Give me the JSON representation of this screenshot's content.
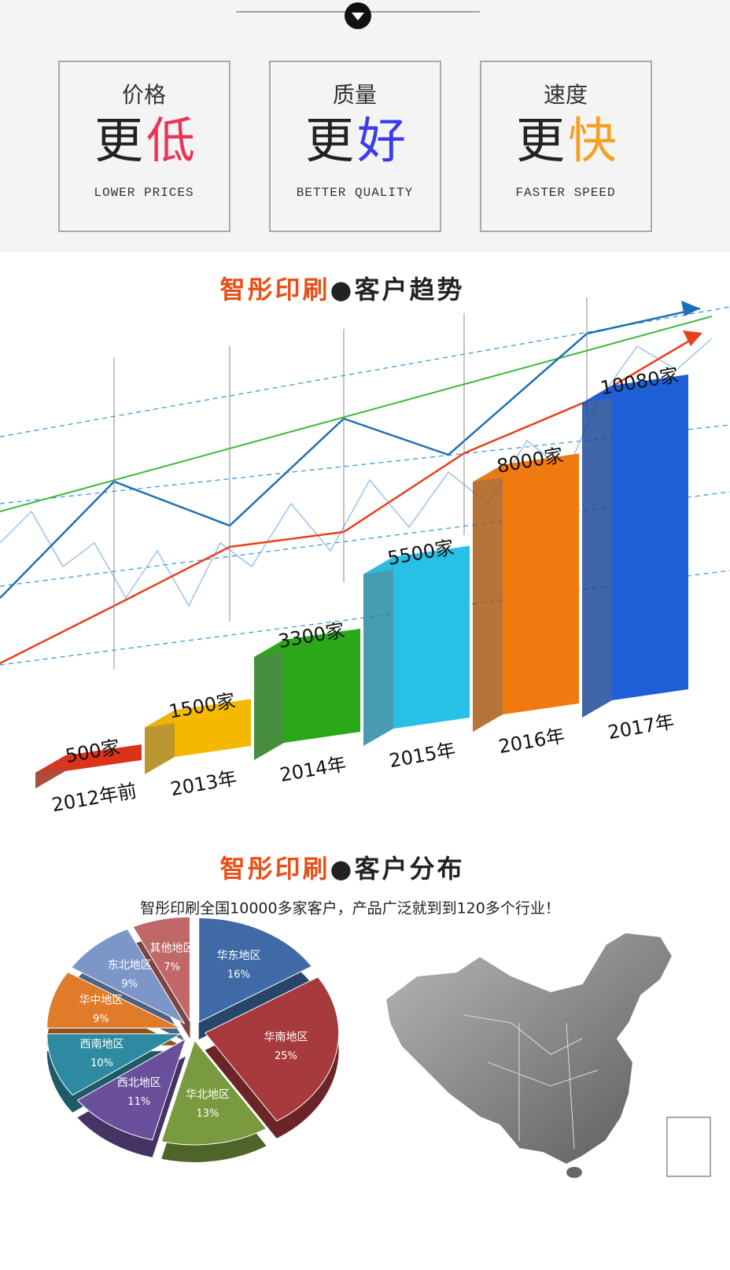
{
  "features": [
    {
      "label": "价格",
      "main": "更",
      "accent": "低",
      "english": "LOWER PRICES",
      "color": "#e8365a"
    },
    {
      "label": "质量",
      "main": "更",
      "accent": "好",
      "english": "BETTER QUALITY",
      "color": "#3b3bf0"
    },
    {
      "label": "速度",
      "main": "更",
      "accent": "快",
      "english": "FASTER SPEED",
      "color": "#f5a020"
    }
  ],
  "chart_data": [
    {
      "type": "bar3d",
      "title_brand": "智彤印刷",
      "title": "●客户趋势",
      "categories": [
        "2012年前",
        "2013年",
        "2014年",
        "2015年",
        "2016年",
        "2017年"
      ],
      "values": [
        500,
        1500,
        3300,
        5500,
        8000,
        10080
      ],
      "value_labels": [
        "500家",
        "1500家",
        "3300家",
        "5500家",
        "8000家",
        "10080家"
      ],
      "colors": [
        "#d9341a",
        "#f5b800",
        "#2aa81a",
        "#29c0e8",
        "#f07a10",
        "#1e5fd8"
      ]
    },
    {
      "type": "pie3d",
      "title_brand": "智彤印刷",
      "title": "●客户分布",
      "subtitle": "智彤印刷全国10000多家客户，产品广泛就到到120多个行业！",
      "categories": [
        "华东地区",
        "华南地区",
        "华北地区",
        "西北地区",
        "西南地区",
        "华中地区",
        "东北地区",
        "其他地区"
      ],
      "values": [
        16,
        25,
        13,
        11,
        10,
        9,
        9,
        7
      ],
      "value_labels": [
        "16%",
        "25%",
        "13%",
        "11%",
        "10%",
        "9%",
        "9%",
        "7%"
      ],
      "colors": [
        "#3f6aa5",
        "#a73a3c",
        "#7a9a3f",
        "#6a4f9a",
        "#2e8aa0",
        "#e07b2a",
        "#7c96c8",
        "#c06868"
      ]
    }
  ]
}
